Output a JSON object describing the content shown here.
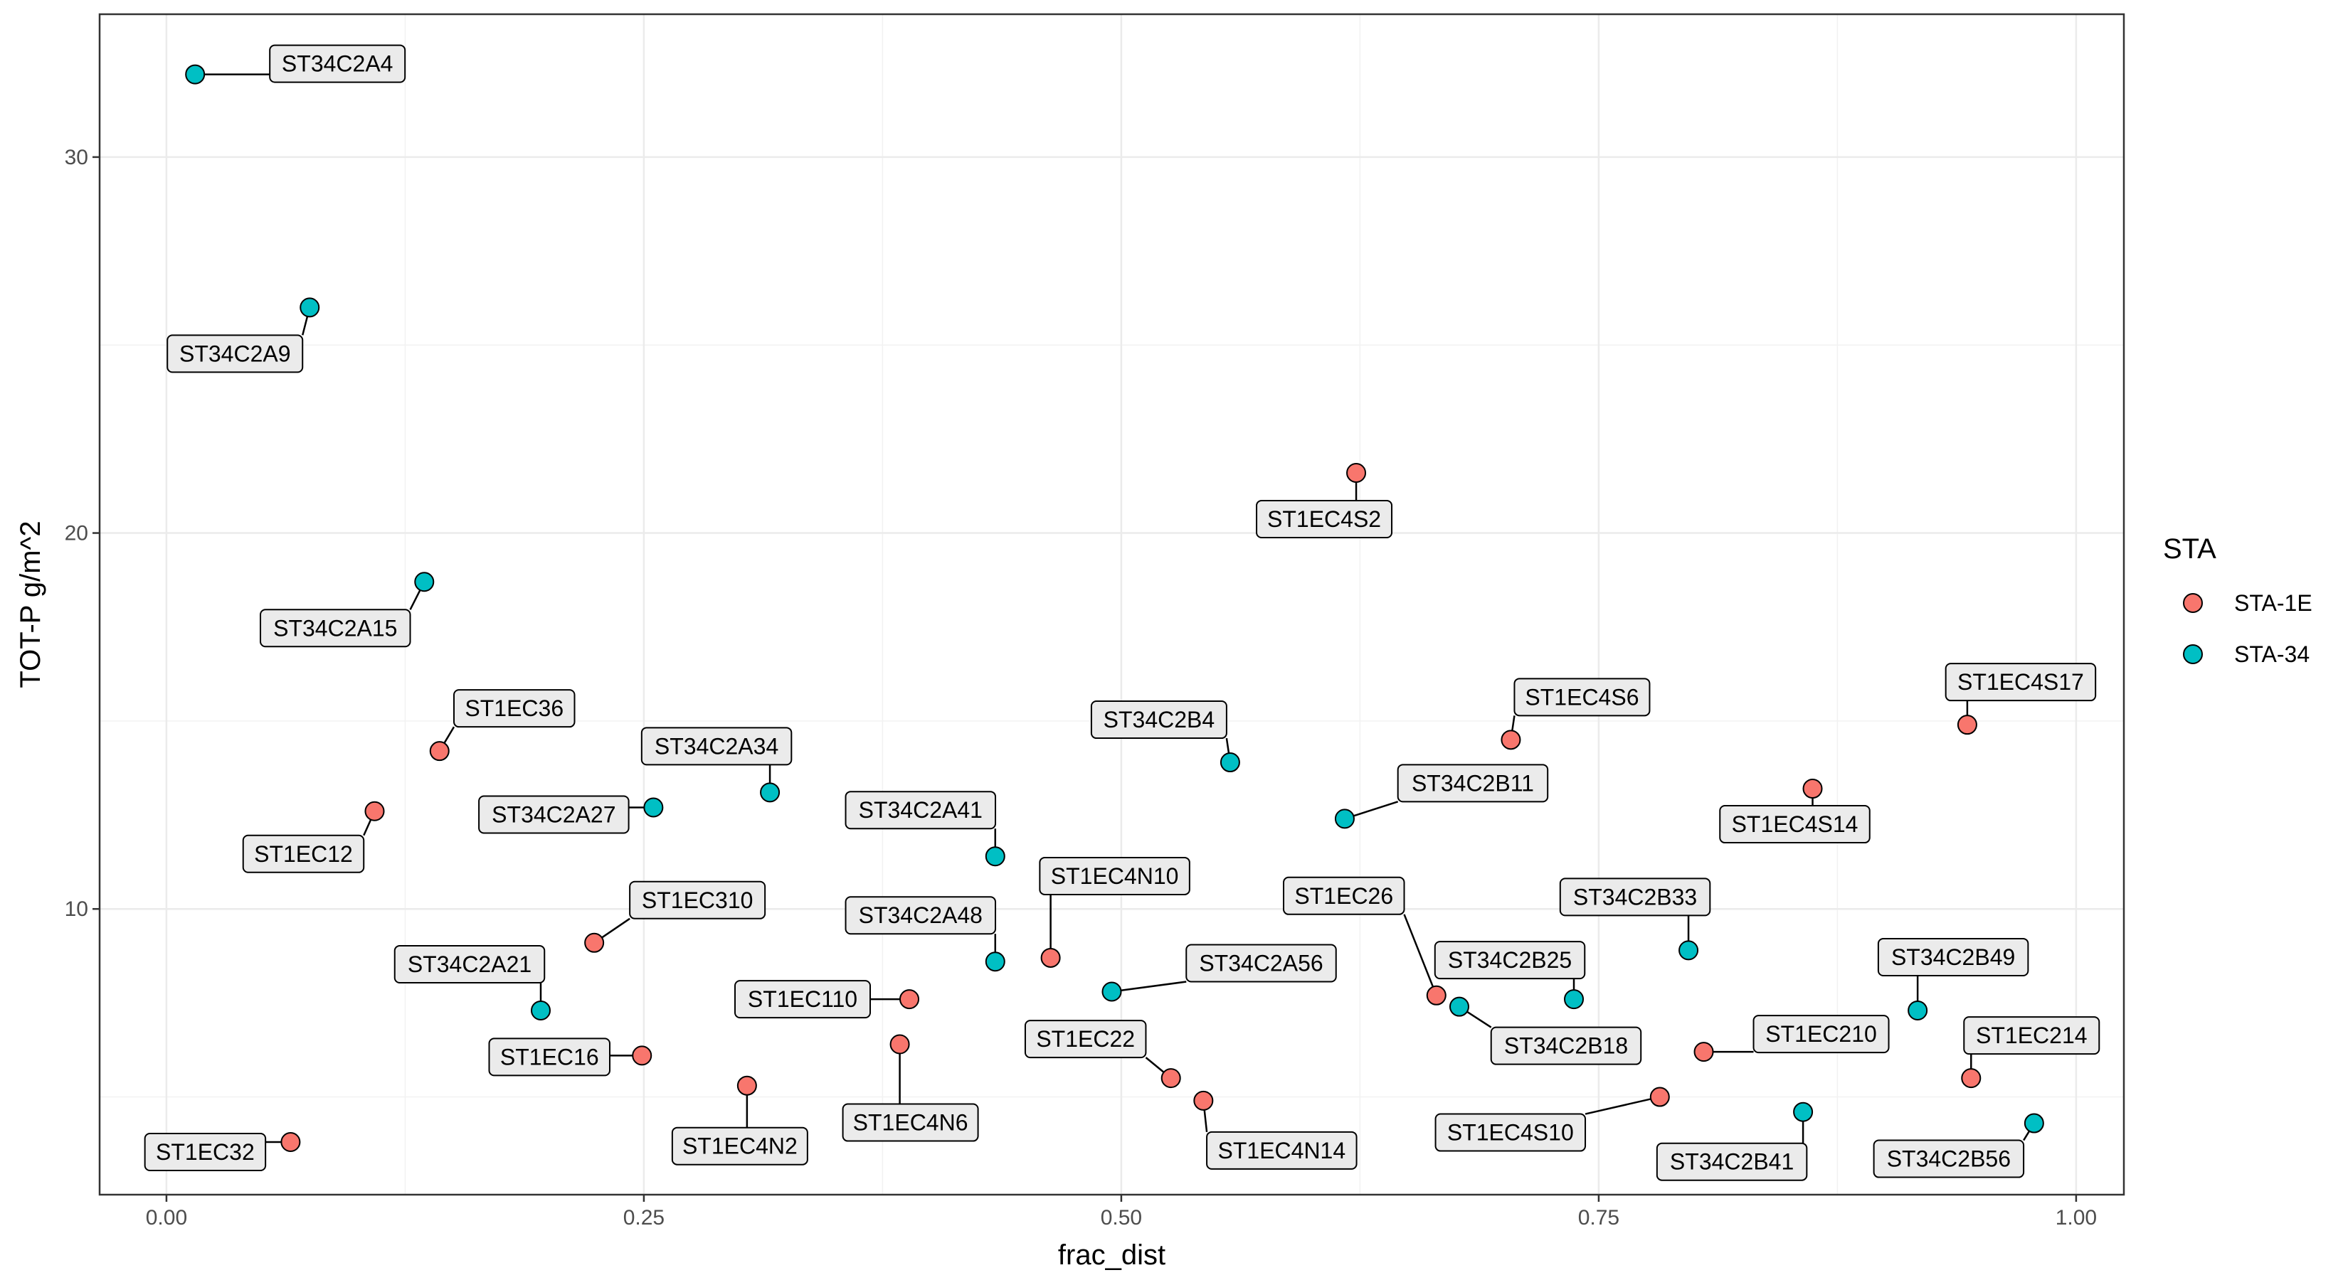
{
  "chart_data": {
    "type": "scatter",
    "xlabel": "frac_dist",
    "ylabel": "TOT-P g/m^2",
    "xlim": [
      -0.035,
      1.025
    ],
    "ylim": [
      2.4,
      33.8
    ],
    "x_ticks": [
      0,
      0.25,
      0.5,
      0.75,
      1.0
    ],
    "x_tick_labels": [
      "0.00",
      "0.25",
      "0.50",
      "0.75",
      "1.00"
    ],
    "y_ticks": [
      10,
      20,
      30
    ],
    "y_tick_labels": [
      "10",
      "20",
      "30"
    ],
    "grid": true,
    "legend": {
      "title": "STA",
      "position": "right",
      "entries": [
        {
          "label": "STA-1E",
          "color": "#F8766D"
        },
        {
          "label": "STA-34",
          "color": "#00BFC4"
        }
      ]
    },
    "series": [
      {
        "name": "STA-1E",
        "color": "#F8766D",
        "points": [
          {
            "label": "ST1EC32",
            "x": 0.065,
            "y": 3.8
          },
          {
            "label": "ST1EC12",
            "x": 0.109,
            "y": 12.6
          },
          {
            "label": "ST1EC36",
            "x": 0.143,
            "y": 14.2
          },
          {
            "label": "ST1EC310",
            "x": 0.224,
            "y": 9.1
          },
          {
            "label": "ST1EC16",
            "x": 0.249,
            "y": 6.1
          },
          {
            "label": "ST1EC4N2",
            "x": 0.304,
            "y": 5.3
          },
          {
            "label": "ST1EC4N6",
            "x": 0.384,
            "y": 6.4
          },
          {
            "label": "ST1EC110",
            "x": 0.389,
            "y": 7.6
          },
          {
            "label": "ST1EC4N10",
            "x": 0.463,
            "y": 8.7
          },
          {
            "label": "ST1EC22",
            "x": 0.526,
            "y": 5.5
          },
          {
            "label": "ST1EC4N14",
            "x": 0.543,
            "y": 4.9
          },
          {
            "label": "ST1EC4S2",
            "x": 0.623,
            "y": 21.6
          },
          {
            "label": "ST1EC26",
            "x": 0.665,
            "y": 7.7
          },
          {
            "label": "ST1EC4S6",
            "x": 0.704,
            "y": 14.5
          },
          {
            "label": "ST1EC4S10",
            "x": 0.782,
            "y": 5.0
          },
          {
            "label": "ST1EC210",
            "x": 0.805,
            "y": 6.2
          },
          {
            "label": "ST1EC4S14",
            "x": 0.862,
            "y": 13.2
          },
          {
            "label": "ST1EC4S17",
            "x": 0.943,
            "y": 14.9
          },
          {
            "label": "ST1EC214",
            "x": 0.945,
            "y": 5.5
          }
        ]
      },
      {
        "name": "STA-34",
        "color": "#00BFC4",
        "points": [
          {
            "label": "ST34C2A4",
            "x": 0.015,
            "y": 32.2
          },
          {
            "label": "ST34C2A9",
            "x": 0.075,
            "y": 26.0
          },
          {
            "label": "ST34C2A15",
            "x": 0.135,
            "y": 18.7
          },
          {
            "label": "ST34C2A21",
            "x": 0.196,
            "y": 7.3
          },
          {
            "label": "ST34C2A27",
            "x": 0.255,
            "y": 12.7
          },
          {
            "label": "ST34C2A34",
            "x": 0.316,
            "y": 13.1
          },
          {
            "label": "ST34C2A41",
            "x": 0.434,
            "y": 11.4
          },
          {
            "label": "ST34C2A48",
            "x": 0.434,
            "y": 8.6
          },
          {
            "label": "ST34C2A56",
            "x": 0.495,
            "y": 7.8
          },
          {
            "label": "ST34C2B4",
            "x": 0.557,
            "y": 13.9
          },
          {
            "label": "ST34C2B11",
            "x": 0.617,
            "y": 12.4
          },
          {
            "label": "ST34C2B18",
            "x": 0.677,
            "y": 7.4
          },
          {
            "label": "ST34C2B25",
            "x": 0.737,
            "y": 7.6
          },
          {
            "label": "ST34C2B33",
            "x": 0.797,
            "y": 8.9
          },
          {
            "label": "ST34C2B41",
            "x": 0.857,
            "y": 4.6
          },
          {
            "label": "ST34C2B49",
            "x": 0.917,
            "y": 7.3
          },
          {
            "label": "ST34C2B56",
            "x": 0.978,
            "y": 4.3
          }
        ]
      }
    ]
  }
}
